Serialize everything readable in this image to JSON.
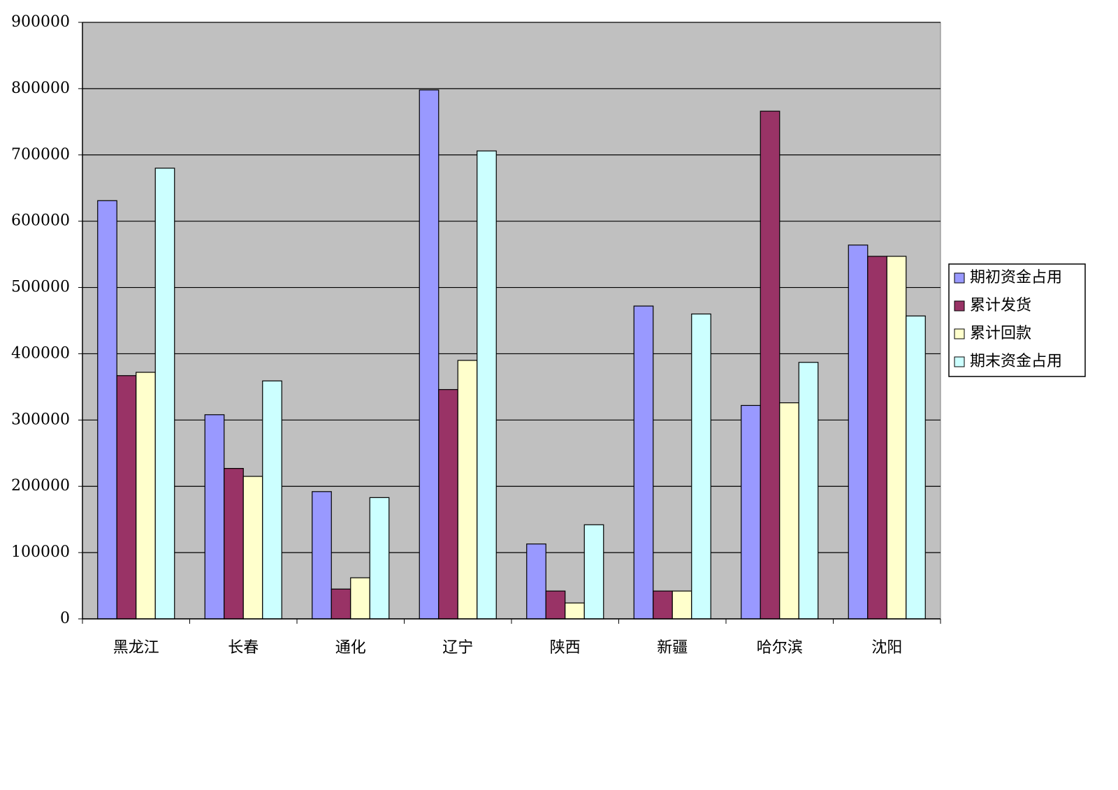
{
  "chart_data": {
    "type": "bar",
    "categories": [
      "黑龙江",
      "长春",
      "通化",
      "辽宁",
      "陕西",
      "新疆",
      "哈尔滨",
      "沈阳"
    ],
    "series": [
      {
        "name": "期初资金占用",
        "color": "#9999ff",
        "values": [
          631000,
          308000,
          192000,
          798000,
          113000,
          472000,
          322000,
          564000
        ]
      },
      {
        "name": "累计发货",
        "color": "#993366",
        "values": [
          367000,
          227000,
          45000,
          346000,
          42000,
          42000,
          766000,
          547000
        ]
      },
      {
        "name": "累计回款",
        "color": "#ffffcc",
        "values": [
          372000,
          215000,
          62000,
          390000,
          24000,
          42000,
          326000,
          547000
        ]
      },
      {
        "name": "期末资金占用",
        "color": "#ccffff",
        "values": [
          680000,
          359000,
          183000,
          706000,
          142000,
          460000,
          387000,
          457000
        ]
      }
    ],
    "ylim": [
      0,
      900000
    ],
    "yticks": [
      0,
      100000,
      200000,
      300000,
      400000,
      500000,
      600000,
      700000,
      800000,
      900000
    ],
    "grid": true,
    "legend": "right",
    "plot_background": "#c0c0c0"
  }
}
